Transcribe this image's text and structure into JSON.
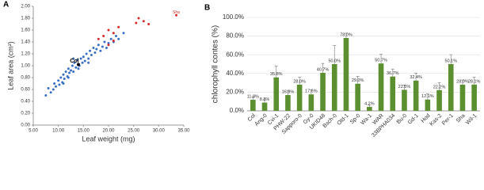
{
  "chart_data": [
    {
      "type": "scatter",
      "panel": "A",
      "x_label": "Leaf weight (mg)",
      "y_label": "Leaf area (cm²)",
      "xlim": [
        5,
        35
      ],
      "xticks": [
        {
          "value": 5,
          "label": "5.00"
        },
        {
          "value": 10,
          "label": "10.00"
        },
        {
          "value": 15,
          "label": "15.00"
        },
        {
          "value": 20,
          "label": "20.00"
        },
        {
          "value": 25,
          "label": "25.00"
        },
        {
          "value": 30,
          "label": "30.00"
        },
        {
          "value": 35,
          "label": "35.00"
        }
      ],
      "ylim": [
        0,
        2
      ],
      "yticks": [
        {
          "value": 0,
          "label": "0.00"
        },
        {
          "value": 0.2,
          "label": "0.20"
        },
        {
          "value": 0.4,
          "label": "0.40"
        },
        {
          "value": 0.6,
          "label": "0.60"
        },
        {
          "value": 0.8,
          "label": "0.80"
        },
        {
          "value": 1,
          "label": "1.00"
        },
        {
          "value": 1.2,
          "label": "1.20"
        },
        {
          "value": 1.4,
          "label": "1.40"
        },
        {
          "value": 1.6,
          "label": "1.60"
        },
        {
          "value": 1.8,
          "label": "1.80"
        },
        {
          "value": 2,
          "label": "2.00"
        }
      ],
      "series": [
        {
          "color": "#3a6fc4",
          "x": [
            7.5,
            8,
            8.5,
            9,
            9.2,
            9.5,
            10,
            10.2,
            10.5,
            10.8,
            11,
            11.2,
            11.5,
            11.8,
            12,
            12.2,
            12.5,
            12.8,
            13,
            13.2,
            13.5,
            13.8,
            14.2,
            14.5,
            14.8,
            15,
            15.3,
            15.6,
            16,
            16.3,
            16.6,
            17,
            17.3,
            17.6,
            18,
            18.4,
            18.8,
            19.2,
            19.6,
            20,
            20.5,
            21,
            21.5,
            22,
            23,
            11,
            12,
            14,
            16,
            13
          ],
          "values": [
            0.5,
            0.62,
            0.55,
            0.6,
            0.7,
            0.65,
            0.75,
            0.68,
            0.8,
            0.72,
            0.85,
            0.78,
            0.9,
            0.82,
            0.95,
            0.88,
            0.92,
            1.0,
            0.9,
            1.05,
            0.97,
            1.1,
            1.0,
            1.12,
            1.05,
            1.15,
            1.08,
            1.2,
            1.12,
            1.25,
            1.18,
            1.3,
            1.22,
            1.28,
            1.35,
            1.25,
            1.32,
            1.4,
            1.3,
            1.38,
            1.45,
            1.4,
            1.5,
            1.45,
            1.55,
            0.7,
            0.8,
            0.95,
            1.05,
            1.12
          ]
        },
        {
          "color": "#d62b2b",
          "x": [
            33.5,
            26,
            27,
            25.5,
            28,
            20,
            21,
            22,
            19,
            18,
            21,
            20
          ],
          "values": [
            1.85,
            1.8,
            1.75,
            1.72,
            1.7,
            1.6,
            1.55,
            1.65,
            1.5,
            1.45,
            1.42,
            1.35
          ]
        },
        {
          "color": "#000000",
          "x": [
            14
          ],
          "values": [
            1.02
          ]
        }
      ],
      "annotations": [
        {
          "text": "Col",
          "x": 13.2,
          "y": 1.08
        },
        {
          "text": "Sha",
          "x": 33.5,
          "y": 1.9
        }
      ]
    },
    {
      "type": "bar",
      "panel": "B",
      "y_label": "chlorophyll contes (%)",
      "color": "#5b8f2f",
      "grid": true,
      "categories": [
        "Col",
        "Ang-0",
        "Cvi-1",
        "PHW-22",
        "Sapporo-0",
        "Gy-0",
        "UKID48",
        "Bsch-0",
        "Old-1",
        "Sp-0",
        "Wa-1",
        "WAR",
        "33BPHA034",
        "Bu-0",
        "Gd-1",
        "Hod",
        "Kas-2",
        "Per-1",
        "Sha",
        "Wil-1"
      ],
      "category_colors": [
        "#000000",
        "#2a6fbf",
        "#2a6fbf",
        "#2a6fbf",
        "#2a6fbf",
        "#2a6fbf",
        "#2a6fbf",
        "#c82828",
        "#c82828",
        "#c82828",
        "#c82828",
        "#c82828",
        "#c82828",
        "#c82828",
        "#c82828",
        "#c82828",
        "#c82828",
        "#c82828",
        "#c82828",
        "#c82828"
      ],
      "values": [
        11.8,
        8.8,
        35.8,
        16.9,
        28.0,
        17.6,
        40.7,
        50.0,
        78.0,
        29.0,
        4.2,
        50.7,
        36.7,
        22.5,
        32.4,
        12.1,
        22.2,
        50.1,
        28.0,
        28.1
      ],
      "value_labels": [
        "11.8%",
        "8.8%",
        "35.8%",
        "16.9%",
        "28.0%",
        "17.6%",
        "40.7%",
        "50.0%",
        "78.0%",
        "29.0%",
        "4.2%",
        "50.7%",
        "36.7%",
        "22.5%",
        "32.4%",
        "12.1%",
        "22.2%",
        "50.1%",
        "28.0%",
        "28.1%"
      ],
      "errors": [
        3,
        3,
        12,
        5,
        8,
        5,
        10,
        20,
        5,
        8,
        2,
        10,
        8,
        5,
        8,
        6,
        8,
        10,
        5,
        8
      ],
      "ylim": [
        0,
        100
      ],
      "yticks": [
        {
          "value": 0,
          "label": "0.0%"
        },
        {
          "value": 20,
          "label": "20.0%"
        },
        {
          "value": 40,
          "label": "40.0%"
        },
        {
          "value": 60,
          "label": "60.0%"
        },
        {
          "value": 80,
          "label": "80.0%"
        },
        {
          "value": 100,
          "label": "100.0%"
        }
      ]
    }
  ]
}
